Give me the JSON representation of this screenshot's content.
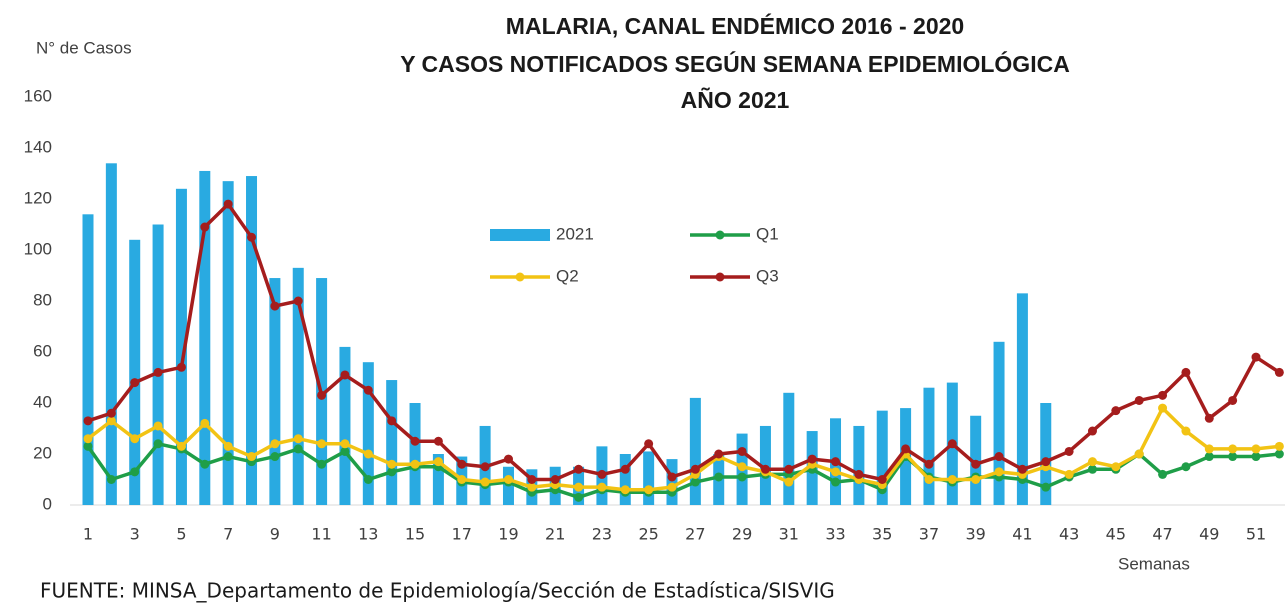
{
  "chart_data": {
    "type": "bar_line",
    "title": [
      "MALARIA, CANAL ENDÉMICO 2016 - 2020",
      "Y CASOS NOTIFICADOS SEGÚN SEMANA EPIDEMIOLÓGICA",
      "AÑO 2021"
    ],
    "y_label": "N° de Casos",
    "x_label": "Semanas",
    "source": "FUENTE: MINSA_Departamento  de Epidemiología/Sección de Estadística/SISVIG",
    "categories": [
      1,
      null,
      3,
      null,
      5,
      null,
      7,
      null,
      9,
      null,
      11,
      null,
      13,
      null,
      15,
      null,
      17,
      null,
      19,
      null,
      21,
      null,
      23,
      null,
      25,
      null,
      27,
      null,
      29,
      null,
      31,
      null,
      33,
      null,
      35,
      null,
      37,
      null,
      39,
      null,
      41,
      null,
      43,
      null,
      45,
      null,
      47,
      null,
      49,
      null,
      51,
      null
    ],
    "ylim": [
      0,
      160
    ],
    "yticks": [
      0,
      20,
      40,
      60,
      80,
      100,
      120,
      140,
      160
    ],
    "grid": false,
    "legend": "center",
    "series": [
      {
        "name": "2021",
        "type": "bar",
        "color": "#29aae1",
        "values": [
          114,
          134,
          104,
          110,
          124,
          131,
          127,
          129,
          89,
          93,
          89,
          62,
          56,
          49,
          40,
          20,
          19,
          31,
          15,
          14,
          15,
          15,
          23,
          20,
          21,
          18,
          42,
          20,
          28,
          31,
          44,
          29,
          34,
          31,
          37,
          38,
          46,
          48,
          35,
          64,
          83,
          40,
          null,
          null,
          null,
          null,
          null,
          null,
          null,
          null,
          null,
          null
        ]
      },
      {
        "name": "Q1",
        "type": "line",
        "color": "#1f9e48",
        "values": [
          23,
          10,
          13,
          24,
          22,
          16,
          19,
          17,
          19,
          22,
          16,
          21,
          10,
          13,
          15,
          15,
          9,
          8,
          9,
          5,
          6,
          3,
          6,
          5,
          5,
          5,
          9,
          11,
          11,
          12,
          12,
          14,
          9,
          10,
          6,
          19,
          11,
          9,
          11,
          11,
          10,
          7,
          11,
          14,
          14,
          20,
          12,
          15,
          19,
          19,
          19,
          20
        ]
      },
      {
        "name": "Q2",
        "type": "line",
        "color": "#f2c314",
        "values": [
          26,
          33,
          26,
          31,
          23,
          32,
          23,
          19,
          24,
          26,
          24,
          24,
          20,
          16,
          16,
          17,
          10,
          9,
          10,
          7,
          8,
          7,
          7,
          6,
          6,
          7,
          12,
          19,
          15,
          13,
          9,
          16,
          13,
          10,
          8,
          20,
          10,
          10,
          10,
          13,
          12,
          15,
          12,
          17,
          15,
          20,
          38,
          29,
          22,
          22,
          22,
          23
        ]
      },
      {
        "name": "Q3",
        "type": "line",
        "color": "#a51d1d",
        "values": [
          33,
          36,
          48,
          52,
          54,
          109,
          118,
          105,
          78,
          80,
          43,
          51,
          45,
          33,
          25,
          25,
          16,
          15,
          18,
          10,
          10,
          14,
          12,
          14,
          24,
          11,
          14,
          20,
          21,
          14,
          14,
          18,
          17,
          12,
          10,
          22,
          16,
          24,
          16,
          19,
          14,
          17,
          21,
          29,
          37,
          41,
          43,
          52,
          34,
          41,
          58,
          52
        ]
      }
    ]
  }
}
